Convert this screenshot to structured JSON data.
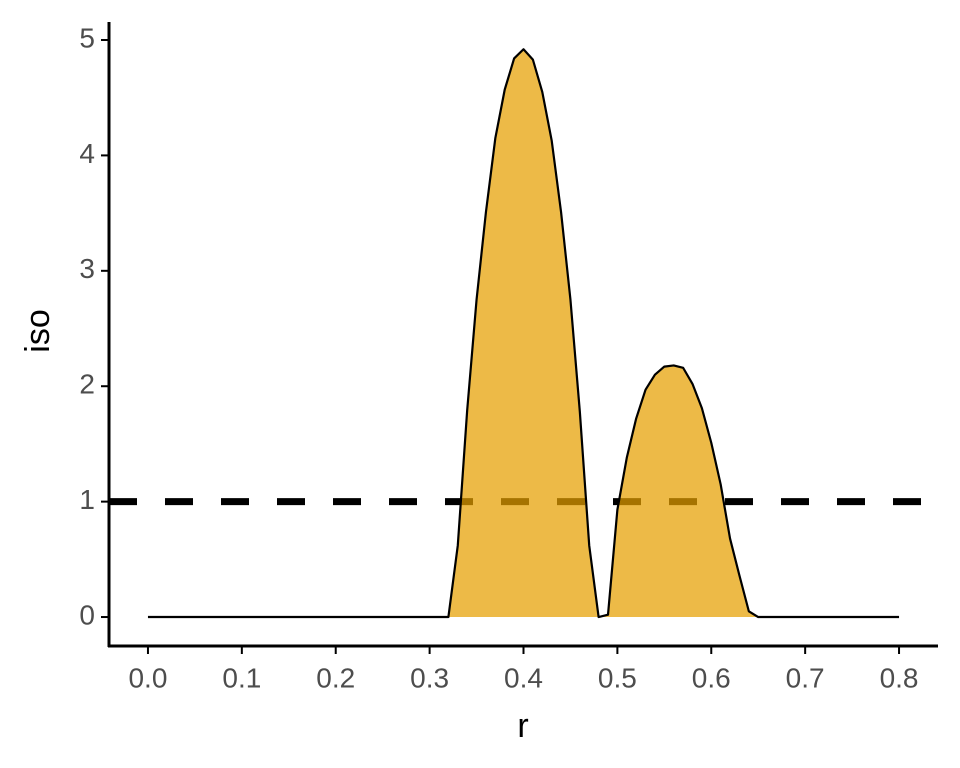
{
  "chart_data": {
    "type": "area",
    "x_label": "r",
    "y_label": "iso",
    "x": [
      0,
      0.32,
      0.33,
      0.34,
      0.35,
      0.36,
      0.37,
      0.38,
      0.39,
      0.4,
      0.41,
      0.42,
      0.43,
      0.44,
      0.45,
      0.46,
      0.47,
      0.48,
      0.49,
      0.5,
      0.51,
      0.52,
      0.53,
      0.54,
      0.55,
      0.56,
      0.57,
      0.58,
      0.59,
      0.6,
      0.61,
      0.62,
      0.63,
      0.64,
      0.65,
      0.8
    ],
    "values": [
      0,
      0,
      0.62,
      1.79,
      2.75,
      3.51,
      4.15,
      4.57,
      4.84,
      4.92,
      4.83,
      4.55,
      4.13,
      3.51,
      2.75,
      1.78,
      0.62,
      0,
      0.02,
      0.93,
      1.38,
      1.72,
      1.97,
      2.1,
      2.17,
      2.18,
      2.16,
      2.02,
      1.81,
      1.51,
      1.15,
      0.68,
      0.36,
      0.05,
      0,
      0
    ],
    "color": "#e69f00",
    "alpha": 0.72,
    "hline": {
      "value": 1,
      "style": "dashed",
      "color": "#000000"
    },
    "xlim": [
      -0.0415,
      0.8415
    ],
    "ylim": [
      -0.251,
      5.156
    ],
    "xticks": [
      {
        "value": 0,
        "label": "0.0"
      },
      0.1,
      0.2,
      0.3,
      0.4,
      0.5,
      0.6,
      0.7,
      0.8
    ],
    "yticks": [
      0,
      1,
      2,
      3,
      4,
      5
    ],
    "grid": false
  }
}
